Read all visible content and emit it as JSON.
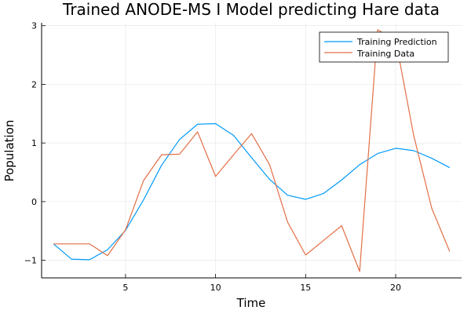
{
  "chart_data": {
    "type": "line",
    "title": "Trained ANODE-MS I Model predicting Hare data",
    "xlabel": "Time",
    "ylabel": "Population",
    "xlim": [
      0.34,
      23.66
    ],
    "ylim": [
      -1.3,
      3.05
    ],
    "xticks": [
      5,
      10,
      15,
      20
    ],
    "xtick_labels": [
      "5",
      "10",
      "15",
      "20"
    ],
    "yticks": [
      -1,
      0,
      1,
      2,
      3
    ],
    "ytick_labels": [
      "−1",
      "0",
      "1",
      "2",
      "3"
    ],
    "grid": true,
    "legend_position": "top-right",
    "x": [
      1,
      2,
      3,
      4,
      5,
      6,
      7,
      8,
      9,
      10,
      11,
      12,
      13,
      14,
      15,
      16,
      17,
      18,
      19,
      20,
      21,
      22,
      23
    ],
    "series": [
      {
        "name": "Training Prediction",
        "color": "#009AFA",
        "values": [
          -0.72,
          -0.98,
          -0.99,
          -0.82,
          -0.49,
          0.03,
          0.62,
          1.06,
          1.32,
          1.33,
          1.13,
          0.75,
          0.38,
          0.11,
          0.04,
          0.14,
          0.37,
          0.63,
          0.82,
          0.91,
          0.87,
          0.74,
          0.58
        ]
      },
      {
        "name": "Training Data",
        "color": "#E36F47",
        "values": [
          -0.72,
          -0.72,
          -0.72,
          -0.92,
          -0.48,
          0.36,
          0.8,
          0.81,
          1.19,
          0.43,
          0.8,
          1.16,
          0.63,
          -0.35,
          -0.91,
          -0.66,
          -0.41,
          -1.19,
          2.93,
          2.76,
          1.13,
          -0.11,
          -0.85
        ]
      }
    ]
  }
}
